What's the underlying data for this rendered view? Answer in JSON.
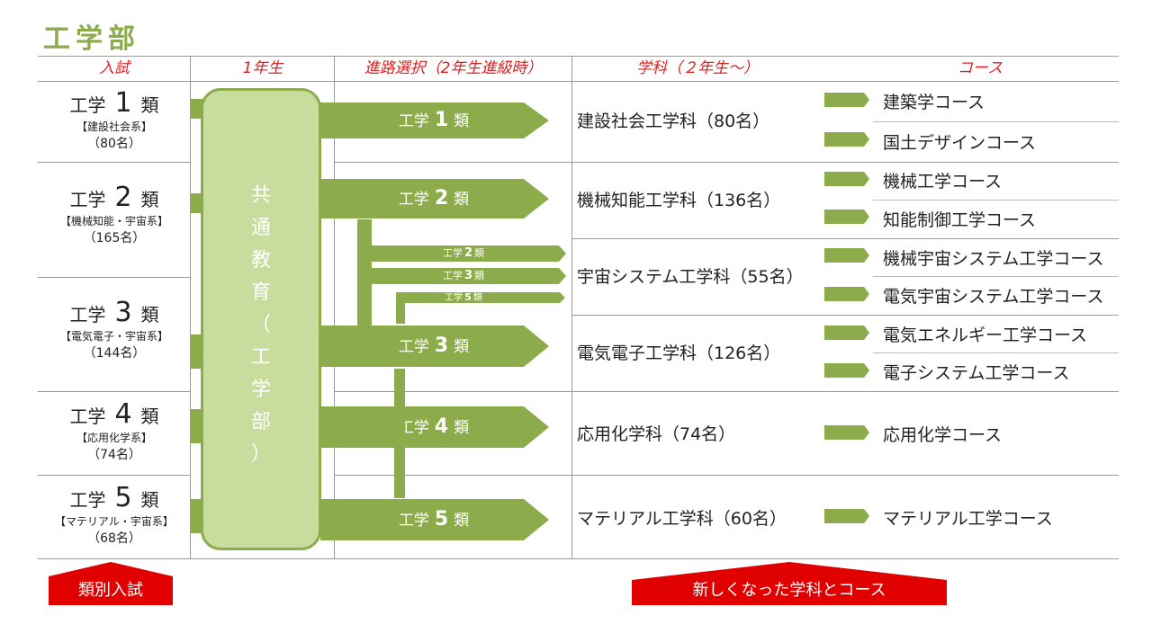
{
  "title": "工学部",
  "headers": {
    "exam": "入試",
    "year1": "1年生",
    "path": "進路選択（2年生進級時）",
    "dept": "学科（２年生〜）",
    "course": "コース"
  },
  "exams": [
    {
      "pre": "工学",
      "num": "1",
      "post": "類",
      "sub": "【建設社会系】",
      "cap": "（80名）"
    },
    {
      "pre": "工学",
      "num": "2",
      "post": "類",
      "sub": "【機械知能・宇宙系】",
      "cap": "（165名）"
    },
    {
      "pre": "工学",
      "num": "3",
      "post": "類",
      "sub": "【電気電子・宇宙系】",
      "cap": "（144名）"
    },
    {
      "pre": "工学",
      "num": "4",
      "post": "類",
      "sub": "【応用化学系】",
      "cap": "（74名）"
    },
    {
      "pre": "工学",
      "num": "5",
      "post": "類",
      "sub": "【マテリアル・宇宙系】",
      "cap": "（68名）"
    }
  ],
  "common": [
    "共",
    "通",
    "教",
    "育",
    "（",
    "工",
    "学",
    "部",
    "）"
  ],
  "path_arrows": [
    {
      "pre": "工学",
      "num": "1",
      "post": "類"
    },
    {
      "pre": "工学",
      "num": "2",
      "post": "類"
    },
    {
      "pre": "工学",
      "num": "3",
      "post": "類"
    },
    {
      "pre": "工学",
      "num": "4",
      "post": "類"
    },
    {
      "pre": "工学",
      "num": "5",
      "post": "類"
    }
  ],
  "small_arrows": [
    {
      "pre": "工学",
      "num": "2",
      "post": "類"
    },
    {
      "pre": "工学",
      "num": "3",
      "post": "類"
    },
    {
      "pre": "工学",
      "num": "5",
      "post": "類"
    }
  ],
  "departments": [
    "建設社会工学科（80名）",
    "機械知能工学科（136名）",
    "宇宙システム工学科（55名）",
    "電気電子工学科（126名）",
    "応用化学科（74名）",
    "マテリアル工学科（60名）"
  ],
  "courses": [
    "建築学コース",
    "国土デザインコース",
    "機械工学コース",
    "知能制御工学コース",
    "機械宇宙システム工学コース",
    "電気宇宙システム工学コース",
    "電気エネルギー工学コース",
    "電子システム工学コース",
    "応用化学コース",
    "マテリアル工学コース"
  ],
  "footer": {
    "left": "類別入試",
    "right": "新しくなった学科とコース"
  },
  "colors": {
    "accent_green": "#8cab4a",
    "light_green": "#c8dc9e",
    "header_red": "#e02020",
    "footer_red": "#e00000"
  }
}
